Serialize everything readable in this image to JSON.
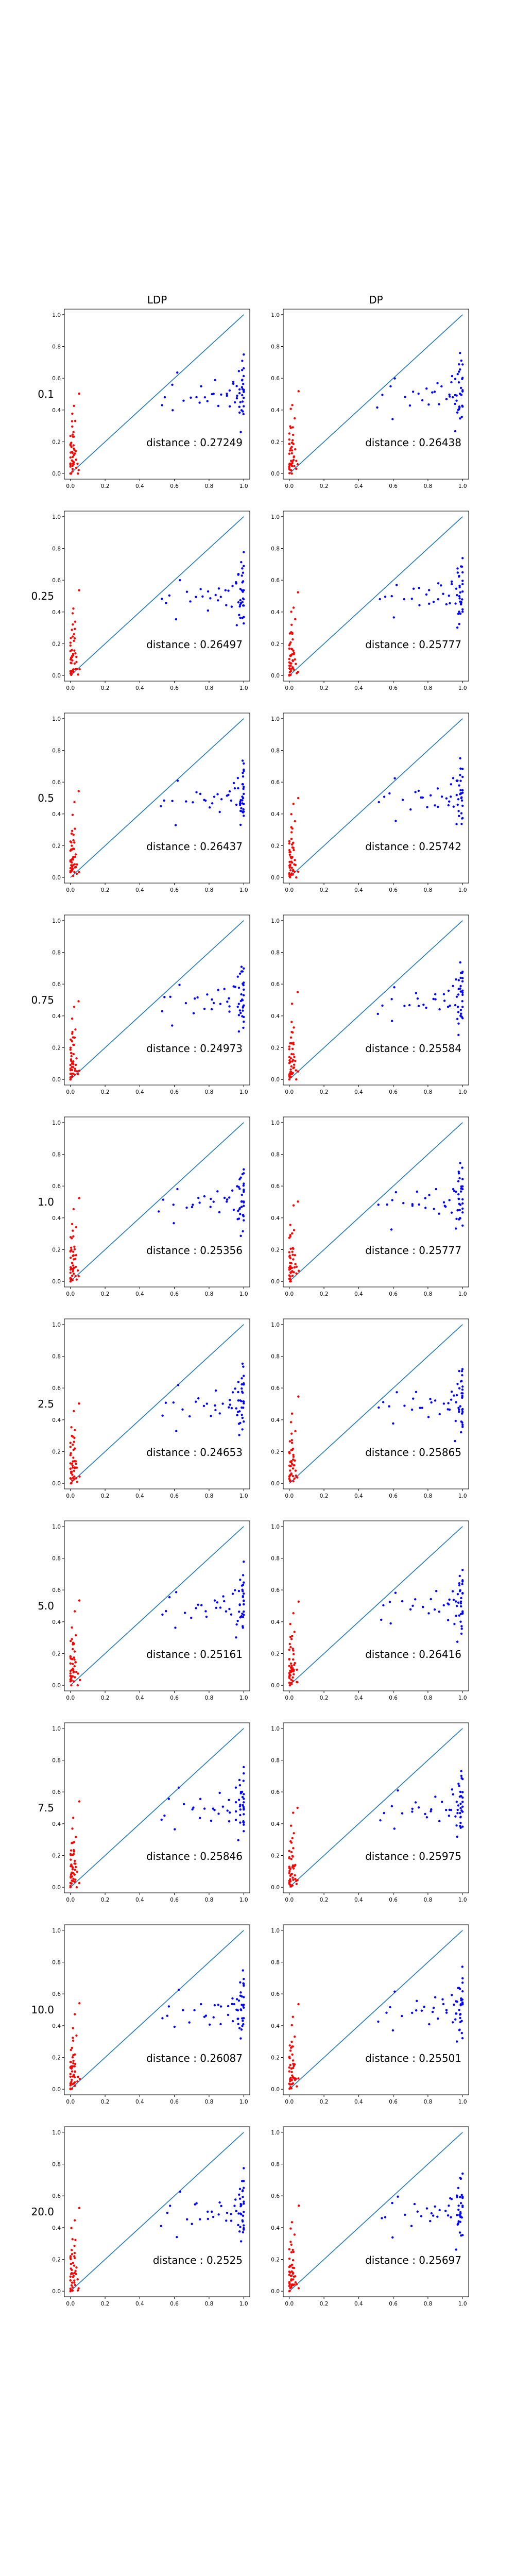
{
  "figure": {
    "columns": [
      "LDP",
      "DP"
    ],
    "rows": [
      "0.1",
      "0.25",
      "0.5",
      "0.75",
      "1.0",
      "2.5",
      "5.0",
      "7.5",
      "10.0",
      "20.0"
    ]
  },
  "chart_data": {
    "type": "scatter",
    "layout": "grid of 10 rows x 2 columns",
    "xlim": [
      0,
      1
    ],
    "ylim": [
      0,
      1
    ],
    "x_ticks": [
      "0.0",
      "0.2",
      "0.4",
      "0.6",
      "0.8",
      "1.0"
    ],
    "y_ticks": [
      "0.0",
      "0.2",
      "0.4",
      "0.6",
      "0.8",
      "1.0"
    ],
    "reference_line": {
      "from": [
        0,
        0
      ],
      "to": [
        1,
        1
      ],
      "color": "#1f77b4"
    },
    "series_colors": {
      "near_zero": "#ff0000",
      "near_one": "#0000ff"
    },
    "distance_prefix": "distance : ",
    "panels": [
      {
        "row": "0.1",
        "column": "LDP",
        "distance": "0.27249"
      },
      {
        "row": "0.1",
        "column": "DP",
        "distance": "0.26438"
      },
      {
        "row": "0.25",
        "column": "LDP",
        "distance": "0.26497"
      },
      {
        "row": "0.25",
        "column": "DP",
        "distance": "0.25777"
      },
      {
        "row": "0.5",
        "column": "LDP",
        "distance": "0.26437"
      },
      {
        "row": "0.5",
        "column": "DP",
        "distance": "0.25742"
      },
      {
        "row": "0.75",
        "column": "LDP",
        "distance": "0.24973"
      },
      {
        "row": "0.75",
        "column": "DP",
        "distance": "0.25584"
      },
      {
        "row": "1.0",
        "column": "LDP",
        "distance": "0.25356"
      },
      {
        "row": "1.0",
        "column": "DP",
        "distance": "0.25777"
      },
      {
        "row": "2.5",
        "column": "LDP",
        "distance": "0.24653"
      },
      {
        "row": "2.5",
        "column": "DP",
        "distance": "0.25865"
      },
      {
        "row": "5.0",
        "column": "LDP",
        "distance": "0.25161"
      },
      {
        "row": "5.0",
        "column": "DP",
        "distance": "0.26416"
      },
      {
        "row": "7.5",
        "column": "LDP",
        "distance": "0.25846"
      },
      {
        "row": "7.5",
        "column": "DP",
        "distance": "0.25975"
      },
      {
        "row": "10.0",
        "column": "LDP",
        "distance": "0.26087"
      },
      {
        "row": "10.0",
        "column": "DP",
        "distance": "0.25501"
      },
      {
        "row": "20.0",
        "column": "LDP",
        "distance": "0.2525"
      },
      {
        "row": "20.0",
        "column": "DP",
        "distance": "0.25697"
      }
    ],
    "points_red": [
      [
        0.0,
        0.01
      ],
      [
        0.01,
        0.03
      ],
      [
        0.0,
        0.05
      ],
      [
        0.02,
        0.07
      ],
      [
        0.01,
        0.09
      ],
      [
        0.0,
        0.11
      ],
      [
        0.02,
        0.13
      ],
      [
        0.01,
        0.15
      ],
      [
        0.0,
        0.17
      ],
      [
        0.02,
        0.19
      ],
      [
        0.01,
        0.22
      ],
      [
        0.0,
        0.25
      ],
      [
        0.02,
        0.28
      ],
      [
        0.01,
        0.02
      ],
      [
        0.0,
        0.04
      ],
      [
        0.02,
        0.06
      ],
      [
        0.01,
        0.08
      ],
      [
        0.0,
        0.12
      ],
      [
        0.01,
        0.14
      ],
      [
        0.02,
        0.16
      ],
      [
        0.0,
        0.2
      ],
      [
        0.01,
        0.03
      ],
      [
        0.03,
        0.05
      ],
      [
        0.0,
        0.02
      ],
      [
        0.02,
        0.1
      ],
      [
        0.04,
        0.07
      ],
      [
        0.03,
        0.33
      ],
      [
        0.01,
        0.38
      ],
      [
        0.05,
        0.52
      ],
      [
        0.0,
        0.01
      ],
      [
        0.02,
        0.04
      ],
      [
        0.01,
        0.06
      ],
      [
        0.03,
        0.09
      ],
      [
        0.0,
        0.18
      ],
      [
        0.02,
        0.24
      ],
      [
        0.01,
        0.3
      ],
      [
        0.04,
        0.02
      ],
      [
        0.03,
        0.12
      ],
      [
        0.0,
        0.08
      ],
      [
        0.02,
        0.45
      ],
      [
        0.01,
        0.11
      ],
      [
        0.0,
        0.06
      ],
      [
        0.03,
        0.15
      ],
      [
        0.02,
        0.21
      ],
      [
        0.01,
        0.27
      ],
      [
        0.05,
        0.04
      ]
    ],
    "points_blue": [
      [
        0.97,
        0.3
      ],
      [
        0.99,
        0.35
      ],
      [
        1.0,
        0.38
      ],
      [
        0.98,
        0.4
      ],
      [
        0.99,
        0.42
      ],
      [
        1.0,
        0.44
      ],
      [
        0.97,
        0.46
      ],
      [
        0.99,
        0.48
      ],
      [
        1.0,
        0.5
      ],
      [
        0.98,
        0.52
      ],
      [
        0.99,
        0.54
      ],
      [
        1.0,
        0.56
      ],
      [
        0.97,
        0.58
      ],
      [
        0.99,
        0.6
      ],
      [
        1.0,
        0.62
      ],
      [
        0.98,
        0.64
      ],
      [
        0.99,
        0.66
      ],
      [
        1.0,
        0.68
      ],
      [
        0.99,
        0.7
      ],
      [
        1.0,
        0.45
      ],
      [
        0.98,
        0.47
      ],
      [
        0.99,
        0.51
      ],
      [
        1.0,
        0.53
      ],
      [
        0.97,
        0.49
      ],
      [
        0.99,
        0.43
      ],
      [
        1.0,
        0.57
      ],
      [
        0.98,
        0.61
      ],
      [
        0.99,
        0.39
      ],
      [
        1.0,
        0.74
      ],
      [
        0.99,
        0.55
      ],
      [
        0.93,
        0.45
      ],
      [
        0.92,
        0.52
      ],
      [
        0.95,
        0.6
      ],
      [
        0.91,
        0.48
      ],
      [
        0.94,
        0.55
      ],
      [
        0.96,
        0.42
      ],
      [
        0.9,
        0.5
      ],
      [
        0.88,
        0.53
      ],
      [
        0.86,
        0.45
      ],
      [
        0.85,
        0.56
      ],
      [
        0.83,
        0.49
      ],
      [
        0.82,
        0.52
      ],
      [
        0.8,
        0.44
      ],
      [
        0.78,
        0.5
      ],
      [
        0.76,
        0.47
      ],
      [
        0.74,
        0.54
      ],
      [
        0.72,
        0.51
      ],
      [
        0.7,
        0.45
      ],
      [
        0.66,
        0.49
      ],
      [
        0.62,
        0.6
      ],
      [
        0.58,
        0.52
      ],
      [
        0.55,
        0.48
      ],
      [
        0.52,
        0.45
      ],
      [
        0.6,
        0.36
      ]
    ]
  }
}
